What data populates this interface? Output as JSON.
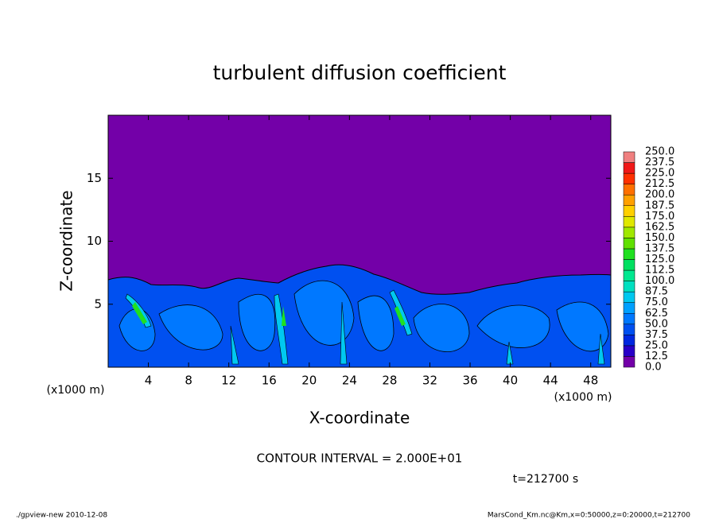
{
  "chart_data": {
    "type": "contour",
    "title": "turbulent diffusion coefficient",
    "xlabel": "X-coordinate",
    "ylabel": "Z-coordinate",
    "xunit": "(x1000 m)",
    "xunit2": "(x1000 m)",
    "xlim": [
      0,
      50
    ],
    "ylim": [
      0,
      20
    ],
    "xticks": [
      4,
      8,
      12,
      16,
      20,
      24,
      28,
      32,
      36,
      40,
      44,
      48
    ],
    "yticks": [
      5,
      10,
      15
    ],
    "colorbar": {
      "levels": [
        {
          "value": 0,
          "label": "0.0"
        },
        {
          "value": 12.5,
          "label": "12.5"
        },
        {
          "value": 25,
          "label": "25.0"
        },
        {
          "value": 37.5,
          "label": "37.5"
        },
        {
          "value": 50,
          "label": "50.0"
        },
        {
          "value": 62.5,
          "label": "62.5"
        },
        {
          "value": 75,
          "label": "75.0"
        },
        {
          "value": 87.5,
          "label": "87.5"
        },
        {
          "value": 100,
          "label": "100.0"
        },
        {
          "value": 112.5,
          "label": "112.5"
        },
        {
          "value": 125,
          "label": "125.0"
        },
        {
          "value": 137.5,
          "label": "137.5"
        },
        {
          "value": 150,
          "label": "150.0"
        },
        {
          "value": 162.5,
          "label": "162.5"
        },
        {
          "value": 175,
          "label": "175.0"
        },
        {
          "value": 187.5,
          "label": "187.5"
        },
        {
          "value": 200,
          "label": "200.0"
        },
        {
          "value": 212.5,
          "label": "212.5"
        },
        {
          "value": 225,
          "label": "225.0"
        },
        {
          "value": 237.5,
          "label": "237.5"
        },
        {
          "value": 250,
          "label": "250.0"
        }
      ],
      "colors": [
        "#7300a8",
        "#2800c8",
        "#0028e0",
        "#0050f0",
        "#0078ff",
        "#00a0ff",
        "#00c8f0",
        "#00e0c0",
        "#00e890",
        "#00e060",
        "#20e020",
        "#60e000",
        "#a0e800",
        "#e0e800",
        "#ffd000",
        "#ffa000",
        "#ff7000",
        "#ff3000",
        "#f01818",
        "#f08080"
      ]
    },
    "contour_interval": "CONTOUR INTERVAL = 2.000E+01",
    "time_label": "t=212700 s",
    "footer_left": "./gpview-new  2010-12-08",
    "footer_right": "MarsCond_Km.nc@Km,x=0:50000,z=0:20000,t=212700"
  }
}
